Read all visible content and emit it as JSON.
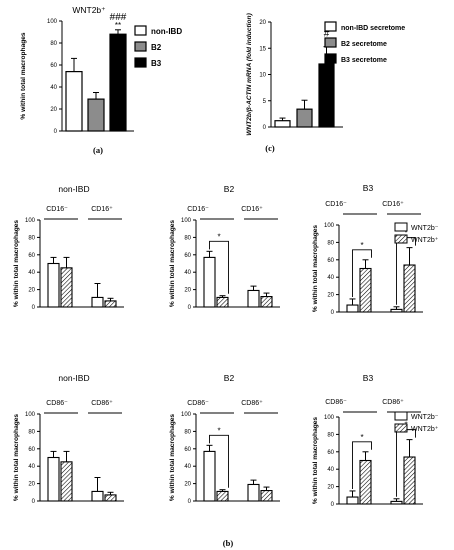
{
  "colors": {
    "black": "#000000",
    "gray": "#8c8c8c",
    "white": "#ffffff"
  },
  "panel_labels": [
    "(a)",
    "(b)",
    "(c)"
  ],
  "chart_data": [
    {
      "id": "a",
      "type": "bar",
      "title": "WNT2b⁺",
      "ylabel": "% within total macrophages",
      "ylim": [
        0,
        100
      ],
      "yticks": [
        0,
        20,
        40,
        60,
        80,
        100
      ],
      "categories": [
        "non-IBD",
        "B2",
        "B3"
      ],
      "values": [
        54,
        29,
        88
      ],
      "errors": [
        12,
        6,
        4
      ],
      "fills": [
        "white",
        "gray",
        "black"
      ],
      "annotations": [
        {
          "text": "###",
          "category": "B3"
        },
        {
          "text": "**",
          "category": "B3"
        }
      ],
      "legend": {
        "placement": "right",
        "entries": [
          {
            "label": "non-IBD",
            "fill": "white"
          },
          {
            "label": "B2",
            "fill": "gray"
          },
          {
            "label": "B3",
            "fill": "black"
          }
        ]
      }
    },
    {
      "id": "c",
      "type": "bar",
      "ylabel": "WNT2b/β-ACTIN mRNA (fold induction)",
      "ylim": [
        0,
        20
      ],
      "yticks": [
        0,
        5,
        10,
        15,
        20
      ],
      "categories": [
        "non-IBD secretome",
        "B2 secretome",
        "B3 secretome"
      ],
      "values": [
        1.2,
        3.4,
        12
      ],
      "errors": [
        0.5,
        1.7,
        3.3
      ],
      "fills": [
        "white",
        "gray",
        "black"
      ],
      "annotations": [
        {
          "text": "#",
          "category": "B3 secretome"
        },
        {
          "text": "*",
          "category": "B3 secretome"
        }
      ],
      "legend": {
        "placement": "right",
        "entries": [
          {
            "label": "non-IBD secretome",
            "fill": "white"
          },
          {
            "label": "B2 secretome",
            "fill": "gray"
          },
          {
            "label": "B3 secretome",
            "fill": "black"
          }
        ]
      }
    },
    {
      "id": "b1",
      "type": "bar",
      "title": "non-IBD",
      "ylabel": "% within total macrophages",
      "ylim": [
        0,
        100
      ],
      "yticks": [
        0,
        20,
        40,
        60,
        80,
        100
      ],
      "groups": [
        "CD16⁻",
        "CD16⁺"
      ],
      "series": [
        {
          "name": "WNT2b⁻",
          "values": [
            50,
            11
          ],
          "errors": [
            7,
            16
          ]
        },
        {
          "name": "WNT2b⁺",
          "values": [
            45,
            7
          ],
          "errors": [
            12,
            3
          ]
        }
      ],
      "significance": []
    },
    {
      "id": "b2",
      "type": "bar",
      "title": "B2",
      "ylabel": "% within total macrophages",
      "ylim": [
        0,
        100
      ],
      "yticks": [
        0,
        20,
        40,
        60,
        80,
        100
      ],
      "groups": [
        "CD16⁻",
        "CD16⁺"
      ],
      "series": [
        {
          "name": "WNT2b⁻",
          "values": [
            57,
            19
          ],
          "errors": [
            7,
            5
          ]
        },
        {
          "name": "WNT2b⁺",
          "values": [
            11,
            12
          ],
          "errors": [
            2,
            4
          ]
        }
      ],
      "significance": [
        {
          "group": 0,
          "text": "*"
        }
      ]
    },
    {
      "id": "b3",
      "type": "bar",
      "title": "B3",
      "ylabel": "% within total macrophages",
      "ylim": [
        0,
        100
      ],
      "yticks": [
        0,
        20,
        40,
        60,
        80,
        100
      ],
      "groups": [
        "CD16⁻",
        "CD16⁺"
      ],
      "series": [
        {
          "name": "WNT2b⁻",
          "values": [
            8,
            3
          ],
          "errors": [
            7,
            3
          ]
        },
        {
          "name": "WNT2b⁺",
          "values": [
            50,
            54
          ],
          "errors": [
            10,
            20
          ]
        }
      ],
      "significance": [
        {
          "group": 0,
          "text": "*"
        },
        {
          "group": 1,
          "text": "*"
        }
      ],
      "legend": {
        "placement": "right",
        "entries": [
          {
            "label": "WNT2b⁻",
            "fill": "white"
          },
          {
            "label": "WNT2b⁺",
            "fill": "hatch"
          }
        ]
      }
    },
    {
      "id": "b4",
      "type": "bar",
      "title": "non-IBD",
      "ylabel": "% within total macrophages",
      "ylim": [
        0,
        100
      ],
      "yticks": [
        0,
        20,
        40,
        60,
        80,
        100
      ],
      "groups": [
        "CD86⁻",
        "CD86⁺"
      ],
      "series": [
        {
          "name": "WNT2b⁻",
          "values": [
            50,
            11
          ],
          "errors": [
            7,
            16
          ]
        },
        {
          "name": "WNT2b⁺",
          "values": [
            45,
            7
          ],
          "errors": [
            12,
            3
          ]
        }
      ],
      "significance": []
    },
    {
      "id": "b5",
      "type": "bar",
      "title": "B2",
      "ylabel": "% within total macrophages",
      "ylim": [
        0,
        100
      ],
      "yticks": [
        0,
        20,
        40,
        60,
        80,
        100
      ],
      "groups": [
        "CD86⁻",
        "CD86⁺"
      ],
      "series": [
        {
          "name": "WNT2b⁻",
          "values": [
            57,
            19
          ],
          "errors": [
            7,
            5
          ]
        },
        {
          "name": "WNT2b⁺",
          "values": [
            11,
            12
          ],
          "errors": [
            2,
            4
          ]
        }
      ],
      "significance": [
        {
          "group": 0,
          "text": "*"
        }
      ]
    },
    {
      "id": "b6",
      "type": "bar",
      "title": "B3",
      "ylabel": "% within total macrophages",
      "ylim": [
        0,
        100
      ],
      "yticks": [
        0,
        20,
        40,
        60,
        80,
        100
      ],
      "groups": [
        "CD86⁻",
        "CD86⁺"
      ],
      "series": [
        {
          "name": "WNT2b⁻",
          "values": [
            8,
            3
          ],
          "errors": [
            7,
            3
          ]
        },
        {
          "name": "WNT2b⁺",
          "values": [
            50,
            54
          ],
          "errors": [
            10,
            20
          ]
        }
      ],
      "significance": [
        {
          "group": 0,
          "text": "*"
        },
        {
          "group": 1,
          "text": "*"
        }
      ],
      "legend": {
        "placement": "right",
        "entries": [
          {
            "label": "WNT2b⁻",
            "fill": "white"
          },
          {
            "label": "WNT2b⁺",
            "fill": "hatch"
          }
        ]
      }
    }
  ]
}
